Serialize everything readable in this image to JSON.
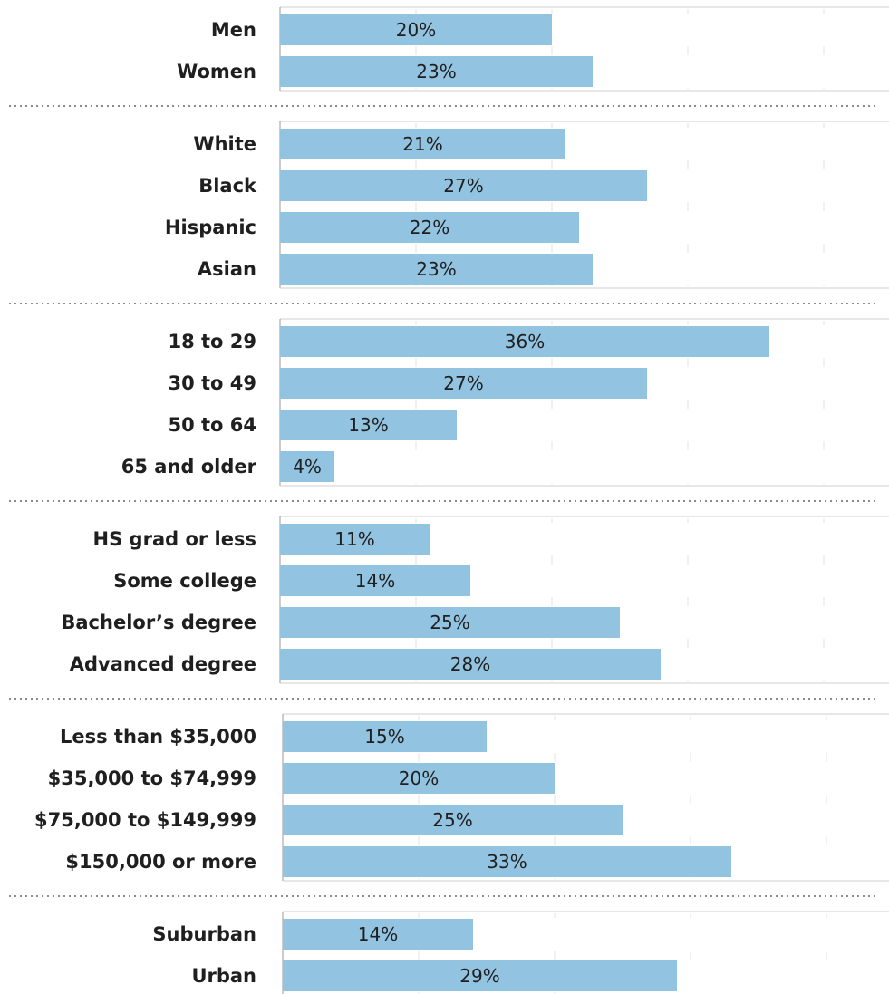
{
  "chart_data": {
    "type": "bar",
    "orientation": "horizontal",
    "bar_color": "#92c3e0",
    "xlim": [
      0,
      45
    ],
    "grid": true,
    "groups": [
      {
        "categories": [
          "Men",
          "Women"
        ],
        "values": [
          20,
          23
        ],
        "labels": [
          "20%",
          "23%"
        ]
      },
      {
        "categories": [
          "White",
          "Black",
          "Hispanic",
          "Asian"
        ],
        "values": [
          21,
          27,
          22,
          23
        ],
        "labels": [
          "21%",
          "27%",
          "22%",
          "23%"
        ]
      },
      {
        "categories": [
          "18 to 29",
          "30 to 49",
          "50 to 64",
          "65 and older"
        ],
        "values": [
          36,
          27,
          13,
          4
        ],
        "labels": [
          "36%",
          "27%",
          "13%",
          "4%"
        ]
      },
      {
        "categories": [
          "HS grad or less",
          "Some college",
          "Bachelor’s degree",
          "Advanced degree"
        ],
        "values": [
          11,
          14,
          25,
          28
        ],
        "labels": [
          "11%",
          "14%",
          "25%",
          "28%"
        ]
      },
      {
        "categories": [
          "Less than $35,000",
          "$35,000 to $74,999",
          "$75,000 to $149,999",
          "$150,000 or more"
        ],
        "values": [
          15,
          20,
          25,
          33
        ],
        "labels": [
          "15%",
          "20%",
          "25%",
          "33%"
        ]
      },
      {
        "categories": [
          "Suburban",
          "Urban"
        ],
        "values": [
          14,
          29
        ],
        "labels": [
          "14%",
          "29%"
        ]
      }
    ]
  }
}
